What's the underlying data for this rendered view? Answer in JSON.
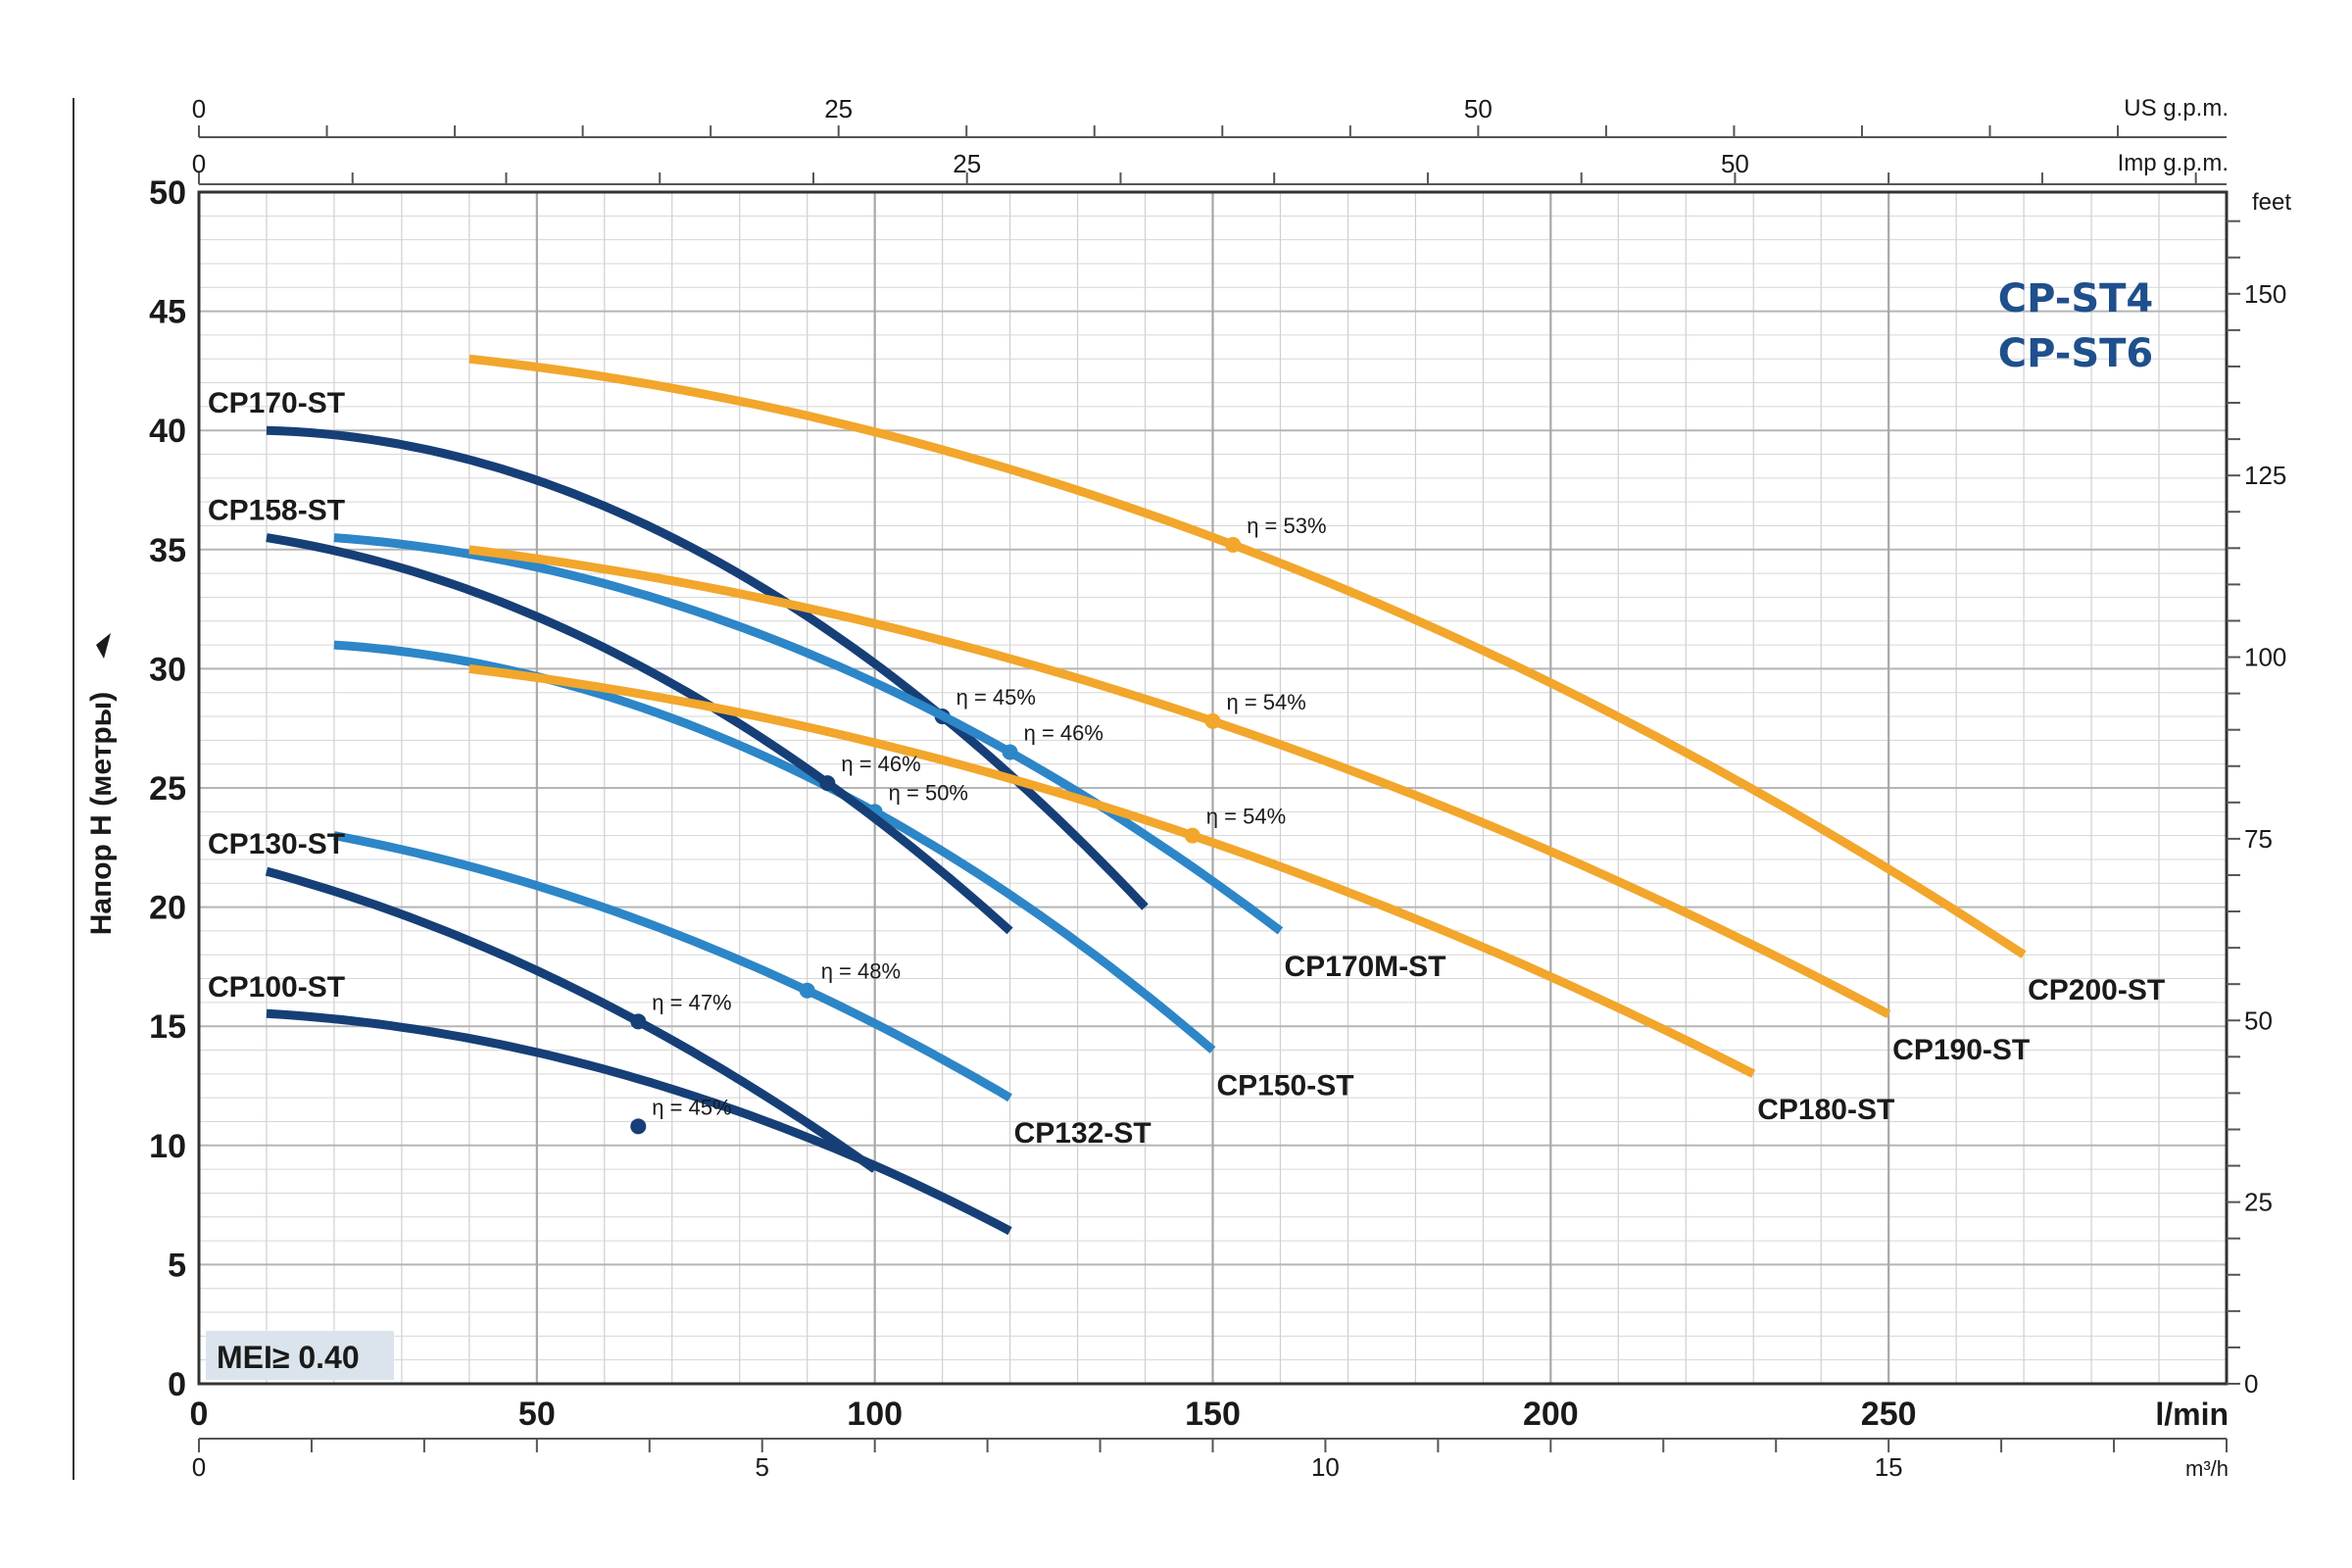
{
  "chart_data": {
    "type": "line",
    "title": [
      "CP-ST4",
      "CP-ST6"
    ],
    "badge": "MEI≥ 0.40",
    "ylabel": "Напор H (метры)",
    "axes": {
      "x_lmin": {
        "label": "l/min",
        "range": [
          0,
          300
        ],
        "ticks": [
          0,
          50,
          100,
          150,
          200,
          250
        ]
      },
      "x_m3h": {
        "label": "m³/h",
        "range": [
          0,
          18
        ],
        "ticks": [
          0,
          5,
          10,
          15
        ]
      },
      "x_impgpm": {
        "label": "Imp g.p.m.",
        "range": [
          0,
          66
        ],
        "ticks": [
          0,
          25,
          50
        ]
      },
      "x_usgpm": {
        "label": "US g.p.m.",
        "range": [
          0,
          79.25
        ],
        "ticks": [
          0,
          25,
          50
        ]
      },
      "y_m": {
        "range": [
          0,
          50
        ],
        "ticks": [
          0,
          5,
          10,
          15,
          20,
          25,
          30,
          35,
          40,
          45,
          50
        ]
      },
      "y_feet": {
        "label": "feet",
        "range": [
          0,
          164
        ],
        "ticks": [
          0,
          25,
          50,
          75,
          100,
          125,
          150
        ]
      }
    },
    "grid": true,
    "series": [
      {
        "name": "CP100-ST",
        "label_pos": "start",
        "color": "#163f77",
        "x": [
          10,
          50,
          100,
          120
        ],
        "y": [
          15.5,
          14,
          9,
          6.5
        ],
        "eff": {
          "x": 65,
          "y": 10.8,
          "label": "η = 45%"
        }
      },
      {
        "name": "CP130-ST",
        "label_pos": "start",
        "color": "#163f77",
        "x": [
          10,
          65,
          100
        ],
        "y": [
          21.5,
          15.2,
          9
        ],
        "eff": {
          "x": 65,
          "y": 15.2,
          "label": "η = 47%"
        }
      },
      {
        "name": "CP132-ST",
        "label_pos": "end",
        "color": "#2d86c7",
        "x": [
          20,
          90,
          120
        ],
        "y": [
          23,
          16.5,
          12
        ],
        "eff": {
          "x": 90,
          "y": 16.5,
          "label": "η = 48%"
        }
      },
      {
        "name": "CP150-ST",
        "label_pos": "end",
        "color": "#2d86c7",
        "x": [
          20,
          100,
          150
        ],
        "y": [
          31,
          24,
          14
        ],
        "eff": {
          "x": 100,
          "y": 24,
          "label": "η = 50%"
        }
      },
      {
        "name": "CP158-ST",
        "label_pos": "start",
        "color": "#163f77",
        "x": [
          10,
          93,
          120
        ],
        "y": [
          35.5,
          25.2,
          19
        ],
        "eff": {
          "x": 93,
          "y": 25.2,
          "label": "η = 46%"
        }
      },
      {
        "name": "CP170-ST",
        "label_pos": "start",
        "color": "#163f77",
        "x": [
          10,
          110,
          140
        ],
        "y": [
          40,
          28,
          20
        ],
        "eff": {
          "x": 110,
          "y": 28,
          "label": "η = 45%"
        }
      },
      {
        "name": "CP170M-ST",
        "label_pos": "end",
        "color": "#2d86c7",
        "x": [
          20,
          120,
          160
        ],
        "y": [
          35.5,
          26.5,
          19
        ],
        "eff": {
          "x": 120,
          "y": 26.5,
          "label": "η = 46%"
        }
      },
      {
        "name": "CP180-ST",
        "label_pos": "end",
        "color": "#f2a62b",
        "x": [
          40,
          147,
          230
        ],
        "y": [
          30,
          23,
          13
        ],
        "eff": {
          "x": 147,
          "y": 23,
          "label": "η = 54%"
        }
      },
      {
        "name": "CP190-ST",
        "label_pos": "end",
        "color": "#f2a62b",
        "x": [
          40,
          150,
          250
        ],
        "y": [
          35,
          27.8,
          15.5
        ],
        "eff": {
          "x": 150,
          "y": 27.8,
          "label": "η = 54%"
        }
      },
      {
        "name": "CP200-ST",
        "label_pos": "end",
        "color": "#f2a62b",
        "x": [
          40,
          153,
          270
        ],
        "y": [
          43,
          35.2,
          18
        ],
        "eff": {
          "x": 153,
          "y": 35.2,
          "label": "η = 53%"
        }
      }
    ]
  }
}
